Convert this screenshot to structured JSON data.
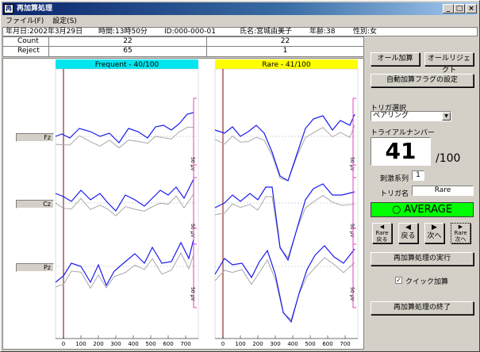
{
  "window": {
    "title": "再加算処理",
    "minimize": "_",
    "maximize": "□",
    "close": "×"
  },
  "menu": {
    "file": "ファイル(F)",
    "settings": "設定(S)"
  },
  "info": {
    "date": "年月日:2002年3月29日",
    "time": "時間:13時50分",
    "id": "ID:000-000-01",
    "name": "氏名:宮城由美子",
    "age": "年齢:38",
    "sex": "性別:女"
  },
  "counts": {
    "count_label": "Count",
    "reject_label": "Reject",
    "frequent_count": "22",
    "rare_count": "22",
    "frequent_reject": "65",
    "rare_reject": "1"
  },
  "panels": {
    "frequent_title": "Frequent - 40/100",
    "rare_title": "Rare - 41/100",
    "frequent_color": "#00e5ee",
    "rare_color": "#ffff00"
  },
  "channels": [
    "Fz",
    "Cz",
    "Pz"
  ],
  "scale_label": "50 μV",
  "x_ticks": [
    "0",
    "100",
    "200",
    "300",
    "400",
    "500",
    "600",
    "700"
  ],
  "right": {
    "all_add": "オール加算",
    "all_reject": "オールリジェクト",
    "auto_flag": "自動加算フラグの設定",
    "trigger_select_label": "トリガ選択",
    "trigger_select_value": "ペアリング",
    "trial_number_label": "トライアルナンバー",
    "trial_number": "41",
    "trial_total": "/100",
    "stim_series_label": "刺激系列",
    "stim_series_value": "1",
    "trigger_name_label": "トリガ名",
    "trigger_name_value": "Rare",
    "average_label": "AVERAGE",
    "average_color": "#00ff00",
    "nav_rare_back_top": "Rare",
    "nav_rare_back": "戻る",
    "nav_back": "戻る",
    "nav_next": "次へ",
    "nav_rare_next_top": "Rare",
    "nav_rare_next": "次へ",
    "execute": "再加算処理の実行",
    "quick_add": "クイック加算",
    "quick_add_checked": true,
    "finish": "再加算処理の終了"
  },
  "traces": {
    "blue": "#1a1aee",
    "gray": "#a8a8a8",
    "magenta": "#e040c0",
    "onset": "#800000"
  }
}
